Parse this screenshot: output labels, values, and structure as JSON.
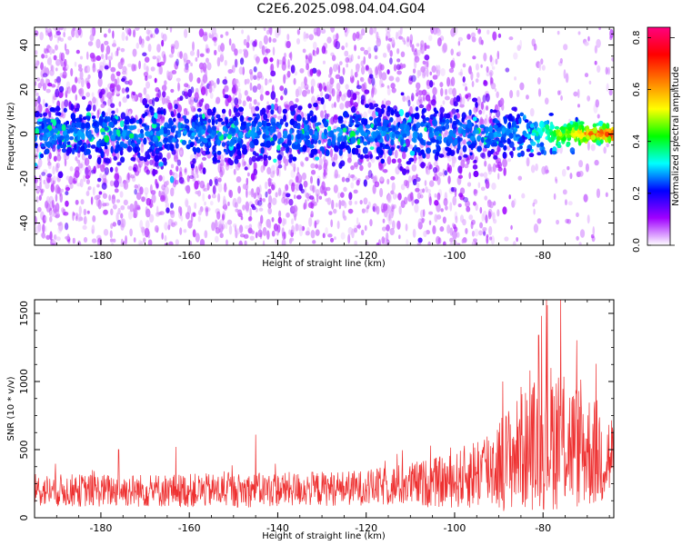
{
  "title": "C2E6.2025.098.04.04.G04",
  "colors": {
    "snr_line": "#ee3030",
    "axis": "#000000"
  },
  "chart_data": [
    {
      "type": "heatmap",
      "name": "spectrogram",
      "xlabel": "Height of straight line (km)",
      "ylabel": "Frequency (Hz)",
      "xlim": [
        -195,
        -64
      ],
      "ylim": [
        -50,
        48
      ],
      "xticks": [
        -180,
        -160,
        -140,
        -120,
        -100,
        -80
      ],
      "yticks": [
        -40,
        -20,
        0,
        20,
        40
      ],
      "colorbar": {
        "label": "Normalized spectral amplitude",
        "range": [
          0.0,
          0.84
        ],
        "ticks": [
          0.0,
          0.2,
          0.4,
          0.6,
          0.8
        ],
        "tick_labels": [
          "0.0",
          "0.2",
          "0.4",
          "0.6",
          "0.8"
        ],
        "colormap": [
          "#ffffff",
          "#a000ff",
          "#0000ff",
          "#00ffff",
          "#00ff00",
          "#ffff00",
          "#ff8000",
          "#ff0000",
          "#ff0080"
        ]
      },
      "signal_band": {
        "center_hz": 0,
        "half_width_hz_start": 11,
        "half_width_hz_end": 3,
        "peak_amplitude_end": 0.8
      }
    },
    {
      "type": "line",
      "name": "snr",
      "xlabel": "Height of straight line (km)",
      "ylabel": "SNR (10 * v/v)",
      "xlim": [
        -195,
        -64
      ],
      "ylim": [
        0,
        1600
      ],
      "xticks": [
        -180,
        -160,
        -140,
        -120,
        -100,
        -80
      ],
      "yticks": [
        0,
        500,
        1000,
        1500
      ],
      "baseline_segments": [
        [
          -195,
          200
        ],
        [
          -150,
          200
        ],
        [
          -120,
          220
        ],
        [
          -100,
          270
        ],
        [
          -90,
          400
        ],
        [
          -78,
          600
        ],
        [
          -72,
          520
        ],
        [
          -64,
          430
        ]
      ],
      "noise_amplitude_segments": [
        [
          -195,
          120
        ],
        [
          -120,
          130
        ],
        [
          -100,
          200
        ],
        [
          -90,
          350
        ],
        [
          -78,
          550
        ],
        [
          -64,
          350
        ]
      ],
      "spikes": [
        [
          -145,
          610
        ],
        [
          -163,
          520
        ],
        [
          -176,
          500
        ],
        [
          -76,
          1600
        ],
        [
          -79,
          1560
        ],
        [
          -81,
          1340
        ],
        [
          -68,
          1130
        ],
        [
          -85,
          960
        ]
      ]
    }
  ]
}
